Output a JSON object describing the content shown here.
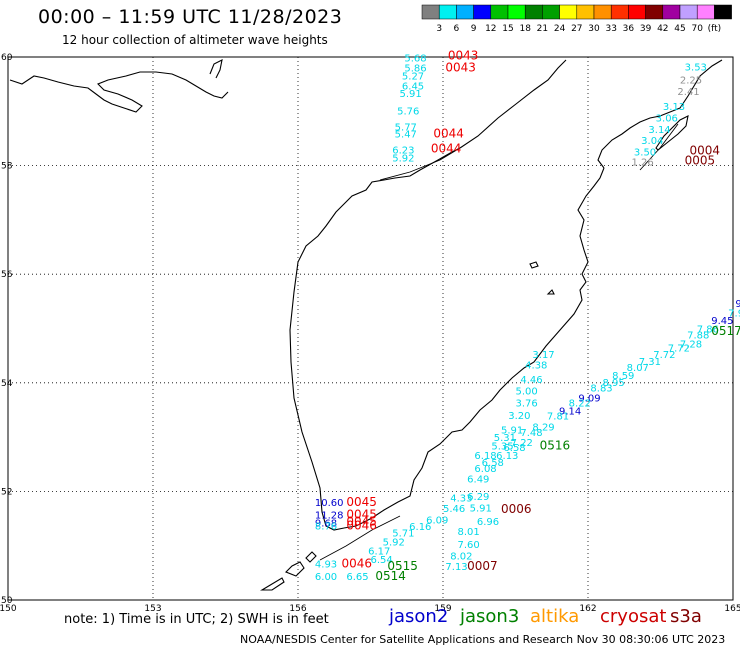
{
  "header": {
    "title": "00:00 – 11:59 UTC 11/28/2023",
    "subtitle": "12 hour collection of altimeter wave heights"
  },
  "legend": {
    "colors": [
      "#808080",
      "#00f0f0",
      "#00b0ff",
      "#0000ff",
      "#00c000",
      "#00ff00",
      "#008000",
      "#00a000",
      "#ffff00",
      "#ffc000",
      "#ff9000",
      "#ff3000",
      "#ff0000",
      "#800000",
      "#a000a0",
      "#c0a0ff",
      "#ff80ff",
      "#000000"
    ],
    "labels": [
      "3",
      "6",
      "9",
      "12",
      "15",
      "18",
      "21",
      "24",
      "27",
      "30",
      "33",
      "36",
      "39",
      "42",
      "45",
      "70",
      "(ft)"
    ]
  },
  "axes": {
    "lon_labels": [
      "150",
      "153",
      "156",
      "159",
      "162",
      "165"
    ],
    "lat_labels": [
      "60",
      "58",
      "56",
      "54",
      "52",
      "50"
    ]
  },
  "footer": {
    "note": "note: 1) Time is in UTC; 2) SWH is in feet",
    "credit": "NOAA/NESDIS Center for Satellite Applications and Research   Nov 30 08:30:06 UTC 2023",
    "missions": [
      {
        "name": "jason2",
        "color": "#0000cc"
      },
      {
        "name": "jason3",
        "color": "#008000"
      },
      {
        "name": "altika",
        "color": "#ff9900"
      },
      {
        "name": "cryosat",
        "color": "#cc0000"
      },
      {
        "name": "s3a",
        "color": "#800000"
      }
    ]
  },
  "map_labels": [
    {
      "text": "5.68",
      "lon": 158.2,
      "lat": 59.92,
      "color": "#00d8e8"
    },
    {
      "text": "5.86",
      "lon": 158.2,
      "lat": 59.73,
      "color": "#00d8e8"
    },
    {
      "text": "5.27",
      "lon": 158.15,
      "lat": 59.59,
      "color": "#00d8e8"
    },
    {
      "text": "6.45",
      "lon": 158.15,
      "lat": 59.4,
      "color": "#00d8e8"
    },
    {
      "text": "5.91",
      "lon": 158.1,
      "lat": 59.26,
      "color": "#00d8e8"
    },
    {
      "text": "5.76",
      "lon": 158.05,
      "lat": 58.94,
      "color": "#00d8e8"
    },
    {
      "text": "5.77",
      "lon": 158.0,
      "lat": 58.65,
      "color": "#00d8e8"
    },
    {
      "text": "5.47",
      "lon": 158.0,
      "lat": 58.52,
      "color": "#00d8e8"
    },
    {
      "text": "6.23",
      "lon": 157.95,
      "lat": 58.22,
      "color": "#00d8e8"
    },
    {
      "text": "5.92",
      "lon": 157.95,
      "lat": 58.08,
      "color": "#00d8e8"
    },
    {
      "text": "0043",
      "lon": 159.1,
      "lat": 59.95,
      "color": "#ee0000"
    },
    {
      "text": "0043",
      "lon": 159.05,
      "lat": 59.73,
      "color": "#ee0000"
    },
    {
      "text": "0044",
      "lon": 158.8,
      "lat": 58.52,
      "color": "#ee0000"
    },
    {
      "text": "0044",
      "lon": 158.75,
      "lat": 58.24,
      "color": "#ee0000"
    },
    {
      "text": "3.53",
      "lon": 164.0,
      "lat": 59.75,
      "color": "#00d8e8"
    },
    {
      "text": "2.25",
      "lon": 163.9,
      "lat": 59.51,
      "color": "#909090"
    },
    {
      "text": "2.41",
      "lon": 163.85,
      "lat": 59.3,
      "color": "#909090"
    },
    {
      "text": "3.13",
      "lon": 163.55,
      "lat": 59.02,
      "color": "#00d8e8"
    },
    {
      "text": "3.06",
      "lon": 163.4,
      "lat": 58.81,
      "color": "#00d8e8"
    },
    {
      "text": "3.14",
      "lon": 163.25,
      "lat": 58.6,
      "color": "#00d8e8"
    },
    {
      "text": "3.04",
      "lon": 163.1,
      "lat": 58.4,
      "color": "#00d8e8"
    },
    {
      "text": "3.50",
      "lon": 162.95,
      "lat": 58.19,
      "color": "#00d8e8"
    },
    {
      "text": "1.26",
      "lon": 162.9,
      "lat": 58.0,
      "color": "#909090"
    },
    {
      "text": "0004",
      "lon": 164.1,
      "lat": 58.2,
      "color": "#800000"
    },
    {
      "text": "0005",
      "lon": 164.0,
      "lat": 58.02,
      "color": "#800000"
    },
    {
      "text": "9",
      "lon": 165.05,
      "lat": 55.4,
      "color": "#0000cc"
    },
    {
      "text": "7.98",
      "lon": 164.9,
      "lat": 55.22,
      "color": "#00d8e8"
    },
    {
      "text": "9.45",
      "lon": 164.55,
      "lat": 55.08,
      "color": "#0000cc"
    },
    {
      "text": "7.86",
      "lon": 164.25,
      "lat": 54.93,
      "color": "#00d8e8"
    },
    {
      "text": "7.88",
      "lon": 164.05,
      "lat": 54.82,
      "color": "#00d8e8"
    },
    {
      "text": "7.28",
      "lon": 163.9,
      "lat": 54.65,
      "color": "#00d8e8"
    },
    {
      "text": "7.72",
      "lon": 163.65,
      "lat": 54.58,
      "color": "#00d8e8"
    },
    {
      "text": "7.72",
      "lon": 163.35,
      "lat": 54.46,
      "color": "#00d8e8"
    },
    {
      "text": "7.31",
      "lon": 163.05,
      "lat": 54.33,
      "color": "#00d8e8"
    },
    {
      "text": "8.07",
      "lon": 162.8,
      "lat": 54.22,
      "color": "#00d8e8"
    },
    {
      "text": "8.59",
      "lon": 162.5,
      "lat": 54.07,
      "color": "#00d8e8"
    },
    {
      "text": "8.95",
      "lon": 162.3,
      "lat": 53.94,
      "color": "#00d8e8"
    },
    {
      "text": "8.83",
      "lon": 162.05,
      "lat": 53.84,
      "color": "#00d8e8"
    },
    {
      "text": "9.09",
      "lon": 161.8,
      "lat": 53.66,
      "color": "#0000cc"
    },
    {
      "text": "8.22",
      "lon": 161.6,
      "lat": 53.56,
      "color": "#00d8e8"
    },
    {
      "text": "9.14",
      "lon": 161.4,
      "lat": 53.42,
      "color": "#0000cc"
    },
    {
      "text": "7.81",
      "lon": 161.15,
      "lat": 53.32,
      "color": "#00d8e8"
    },
    {
      "text": "8.29",
      "lon": 160.85,
      "lat": 53.12,
      "color": "#00d8e8"
    },
    {
      "text": "7.48",
      "lon": 160.6,
      "lat": 53.02,
      "color": "#00d8e8"
    },
    {
      "text": "7.22",
      "lon": 160.4,
      "lat": 52.84,
      "color": "#00d8e8"
    },
    {
      "text": "5.35",
      "lon": 160.0,
      "lat": 52.77,
      "color": "#00d8e8"
    },
    {
      "text": "6.58",
      "lon": 160.25,
      "lat": 52.74,
      "color": "#00d8e8"
    },
    {
      "text": "0516",
      "lon": 161.0,
      "lat": 52.77,
      "color": "#008000"
    },
    {
      "text": "3.17",
      "lon": 160.85,
      "lat": 54.46,
      "color": "#00d8e8"
    },
    {
      "text": "4.38",
      "lon": 160.7,
      "lat": 54.26,
      "color": "#00d8e8"
    },
    {
      "text": "4.46",
      "lon": 160.6,
      "lat": 54.0,
      "color": "#00d8e8"
    },
    {
      "text": "5.00",
      "lon": 160.5,
      "lat": 53.78,
      "color": "#00d8e8"
    },
    {
      "text": "3.76",
      "lon": 160.5,
      "lat": 53.56,
      "color": "#00d8e8"
    },
    {
      "text": "3.20",
      "lon": 160.35,
      "lat": 53.33,
      "color": "#00d8e8"
    },
    {
      "text": "5.91",
      "lon": 160.2,
      "lat": 53.07,
      "color": "#00d8e8"
    },
    {
      "text": "5.31",
      "lon": 160.05,
      "lat": 52.93,
      "color": "#00d8e8"
    },
    {
      "text": "6.13",
      "lon": 160.1,
      "lat": 52.6,
      "color": "#00d8e8"
    },
    {
      "text": "6.18",
      "lon": 159.65,
      "lat": 52.6,
      "color": "#00d8e8"
    },
    {
      "text": "6.58",
      "lon": 159.8,
      "lat": 52.47,
      "color": "#00d8e8"
    },
    {
      "text": "6.08",
      "lon": 159.65,
      "lat": 52.36,
      "color": "#00d8e8"
    },
    {
      "text": "6.49",
      "lon": 159.5,
      "lat": 52.16,
      "color": "#00d8e8"
    },
    {
      "text": "6.29",
      "lon": 159.5,
      "lat": 51.84,
      "color": "#00d8e8"
    },
    {
      "text": "4.33",
      "lon": 159.15,
      "lat": 51.81,
      "color": "#00d8e8"
    },
    {
      "text": "5.46",
      "lon": 159.0,
      "lat": 51.62,
      "color": "#00d8e8"
    },
    {
      "text": "5.91",
      "lon": 159.55,
      "lat": 51.63,
      "color": "#00d8e8"
    },
    {
      "text": "6.96",
      "lon": 159.7,
      "lat": 51.38,
      "color": "#00d8e8"
    },
    {
      "text": "8.01",
      "lon": 159.3,
      "lat": 51.2,
      "color": "#00d8e8"
    },
    {
      "text": "7.60",
      "lon": 159.3,
      "lat": 50.96,
      "color": "#00d8e8"
    },
    {
      "text": "8.02",
      "lon": 159.15,
      "lat": 50.75,
      "color": "#00d8e8"
    },
    {
      "text": "7.13",
      "lon": 159.05,
      "lat": 50.55,
      "color": "#00d8e8"
    },
    {
      "text": "6.09",
      "lon": 158.65,
      "lat": 51.41,
      "color": "#00d8e8"
    },
    {
      "text": "6.16",
      "lon": 158.3,
      "lat": 51.29,
      "color": "#00d8e8"
    },
    {
      "text": "5.71",
      "lon": 157.95,
      "lat": 51.17,
      "color": "#00d8e8"
    },
    {
      "text": "5.92",
      "lon": 157.75,
      "lat": 51.0,
      "color": "#00d8e8"
    },
    {
      "text": "6.17",
      "lon": 157.45,
      "lat": 50.84,
      "color": "#00d8e8"
    },
    {
      "text": "6.54",
      "lon": 157.5,
      "lat": 50.68,
      "color": "#00d8e8"
    },
    {
      "text": "4.93",
      "lon": 156.35,
      "lat": 50.6,
      "color": "#00d8e8"
    },
    {
      "text": "6.00",
      "lon": 156.35,
      "lat": 50.37,
      "color": "#00d8e8"
    },
    {
      "text": "6.65",
      "lon": 157.0,
      "lat": 50.37,
      "color": "#00d8e8"
    },
    {
      "text": "10.60",
      "lon": 156.35,
      "lat": 51.73,
      "color": "#0000cc"
    },
    {
      "text": "11.28",
      "lon": 156.35,
      "lat": 51.5,
      "color": "#0000cc"
    },
    {
      "text": "9.68",
      "lon": 156.35,
      "lat": 51.35,
      "color": "#0000cc"
    },
    {
      "text": "8.76",
      "lon": 156.35,
      "lat": 51.3,
      "color": "#00d8e8"
    },
    {
      "text": "0045",
      "lon": 157.0,
      "lat": 51.73,
      "color": "#ee0000"
    },
    {
      "text": "0045",
      "lon": 157.0,
      "lat": 51.5,
      "color": "#ee0000"
    },
    {
      "text": "0045",
      "lon": 157.0,
      "lat": 51.37,
      "color": "#ee0000"
    },
    {
      "text": "0046",
      "lon": 157.0,
      "lat": 51.3,
      "color": "#ee0000"
    },
    {
      "text": "0046",
      "lon": 156.9,
      "lat": 50.6,
      "color": "#ee0000"
    },
    {
      "text": "0515",
      "lon": 157.85,
      "lat": 50.55,
      "color": "#008000"
    },
    {
      "text": "0514",
      "lon": 157.6,
      "lat": 50.37,
      "color": "#008000"
    },
    {
      "text": "0006",
      "lon": 160.2,
      "lat": 51.6,
      "color": "#800000"
    },
    {
      "text": "0007",
      "lon": 159.5,
      "lat": 50.55,
      "color": "#800000"
    },
    {
      "text": "0517",
      "lon": 164.55,
      "lat": 54.88,
      "color": "#008000"
    }
  ]
}
